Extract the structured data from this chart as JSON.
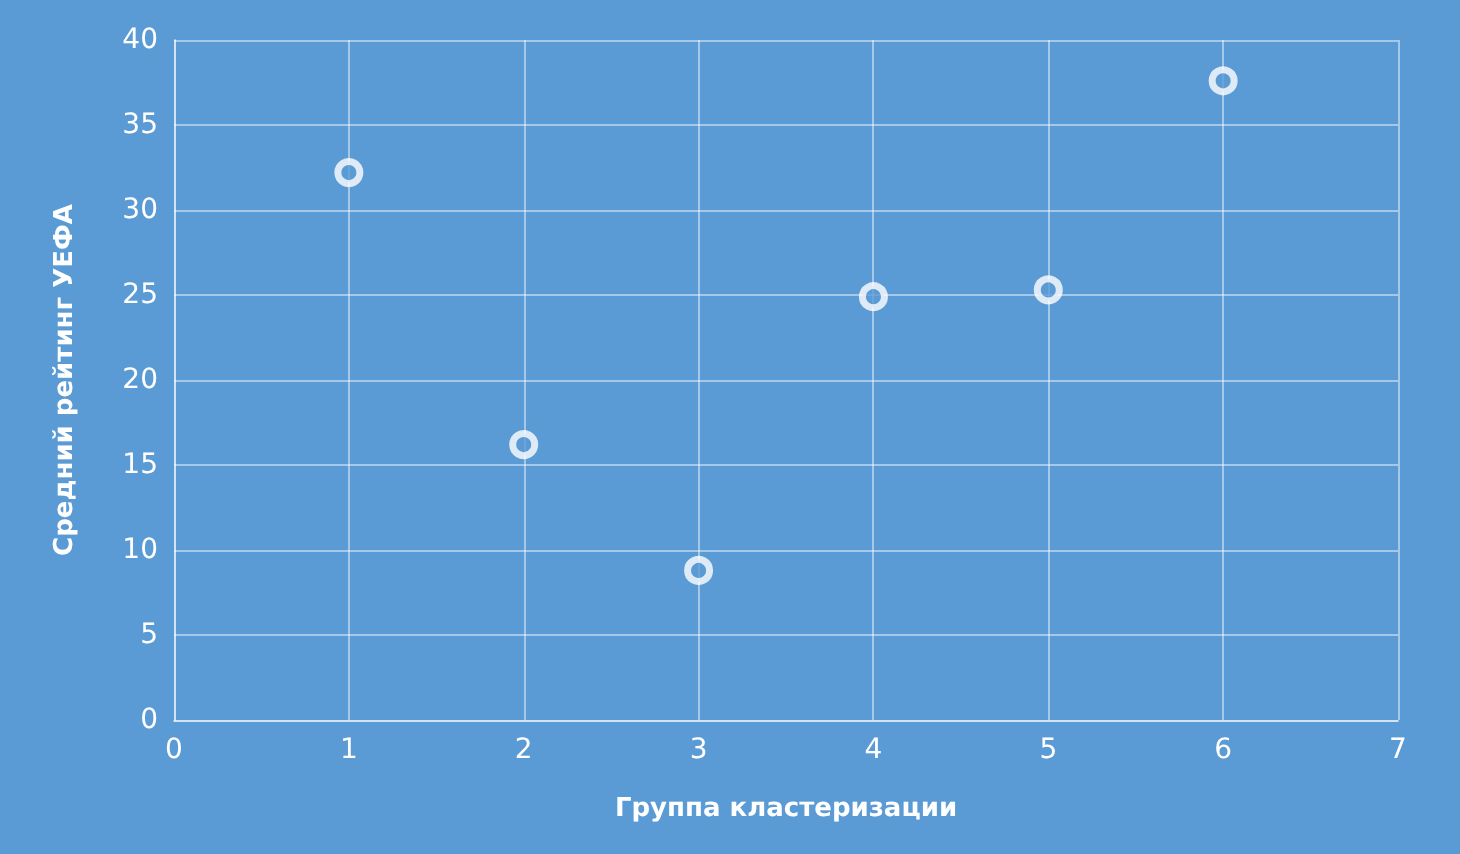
{
  "chart_data": {
    "type": "scatter",
    "xlabel": "Группа кластеризации",
    "ylabel": "Средний рейтинг УЕФА",
    "x": [
      1,
      2,
      3,
      4,
      5,
      6
    ],
    "values": [
      32.2,
      16.2,
      8.8,
      24.9,
      25.3,
      37.6
    ],
    "color": "#ffffff",
    "marker": "circle",
    "xlim": [
      0,
      7
    ],
    "xticks": [
      0,
      1,
      2,
      3,
      4,
      5,
      6,
      7
    ],
    "ylim": [
      0,
      40
    ],
    "yticks": [
      0,
      5,
      10,
      15,
      20,
      25,
      30,
      35,
      40
    ],
    "grid": true
  }
}
